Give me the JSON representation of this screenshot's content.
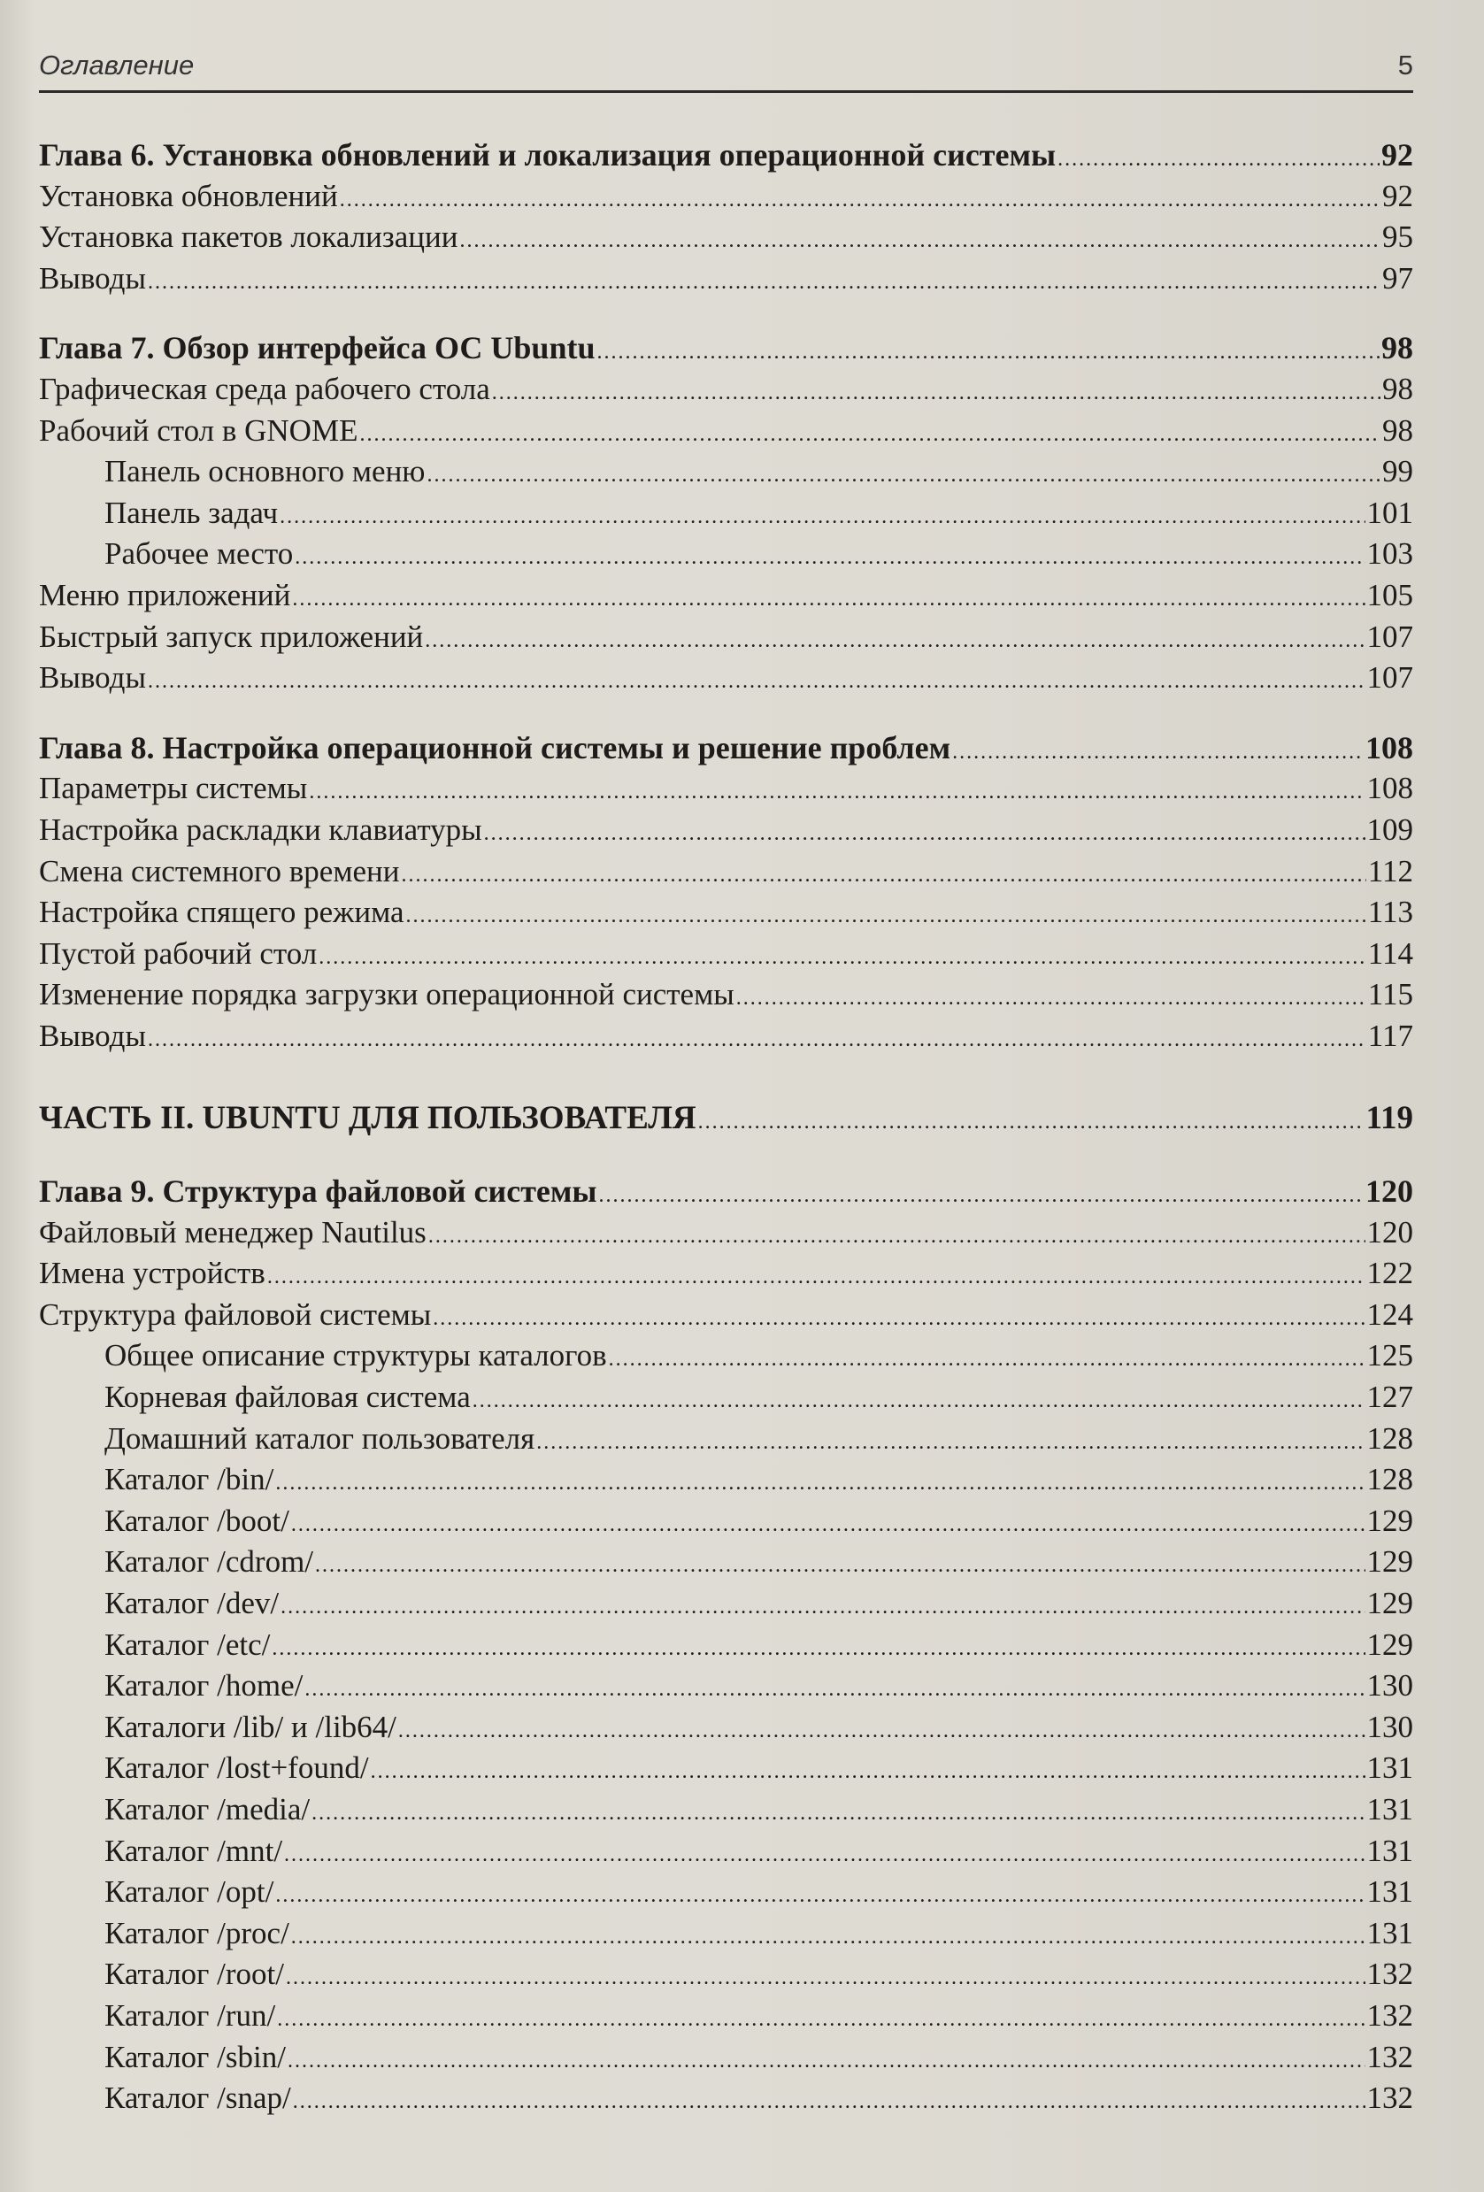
{
  "header": {
    "title": "Оглавление",
    "page_number": "5"
  },
  "toc": [
    {
      "type": "chapter",
      "label": "Глава 6. Установка обновлений и локализация операционной системы",
      "page": "92"
    },
    {
      "type": "section",
      "label": "Установка обновлений",
      "page": "92"
    },
    {
      "type": "section",
      "label": "Установка пакетов локализации",
      "page": "95"
    },
    {
      "type": "section",
      "label": "Выводы",
      "page": "97"
    },
    {
      "type": "chapter",
      "label": "Глава 7. Обзор интерфейса ОС Ubuntu",
      "page": "98"
    },
    {
      "type": "section",
      "label": "Графическая среда рабочего стола",
      "page": "98"
    },
    {
      "type": "section",
      "label": "Рабочий стол в GNOME",
      "page": "98"
    },
    {
      "type": "sub",
      "label": "Панель основного меню",
      "page": "99"
    },
    {
      "type": "sub",
      "label": "Панель задач",
      "page": "101"
    },
    {
      "type": "sub",
      "label": "Рабочее место",
      "page": "103"
    },
    {
      "type": "section",
      "label": "Меню приложений",
      "page": "105"
    },
    {
      "type": "section",
      "label": "Быстрый запуск приложений",
      "page": "107"
    },
    {
      "type": "section",
      "label": "Выводы",
      "page": "107"
    },
    {
      "type": "chapter",
      "label": "Глава 8. Настройка операционной системы и решение проблем",
      "page": "108"
    },
    {
      "type": "section",
      "label": "Параметры системы",
      "page": "108"
    },
    {
      "type": "section",
      "label": "Настройка раскладки клавиатуры",
      "page": "109"
    },
    {
      "type": "section",
      "label": "Смена системного времени",
      "page": "112"
    },
    {
      "type": "section",
      "label": "Настройка спящего режима",
      "page": "113"
    },
    {
      "type": "section",
      "label": "Пустой рабочий стол",
      "page": "114"
    },
    {
      "type": "section",
      "label": "Изменение порядка загрузки операционной системы",
      "page": "115"
    },
    {
      "type": "section",
      "label": "Выводы",
      "page": "117"
    },
    {
      "type": "part",
      "label": "ЧАСТЬ II. UBUNTU ДЛЯ ПОЛЬЗОВАТЕЛЯ",
      "page": "119"
    },
    {
      "type": "chapter",
      "label": "Глава 9. Структура файловой системы",
      "page": "120"
    },
    {
      "type": "section",
      "label": "Файловый менеджер Nautilus",
      "page": "120"
    },
    {
      "type": "section",
      "label": "Имена устройств",
      "page": "122"
    },
    {
      "type": "section",
      "label": "Структура файловой системы",
      "page": "124"
    },
    {
      "type": "sub",
      "label": "Общее описание структуры каталогов",
      "page": "125"
    },
    {
      "type": "sub",
      "label": "Корневая файловая система",
      "page": "127"
    },
    {
      "type": "sub",
      "label": "Домашний каталог пользователя",
      "page": "128"
    },
    {
      "type": "sub",
      "label": "Каталог /bin/",
      "page": "128"
    },
    {
      "type": "sub",
      "label": "Каталог /boot/",
      "page": "129"
    },
    {
      "type": "sub",
      "label": "Каталог /cdrom/",
      "page": "129"
    },
    {
      "type": "sub",
      "label": "Каталог /dev/",
      "page": "129"
    },
    {
      "type": "sub",
      "label": "Каталог /etc/",
      "page": "129"
    },
    {
      "type": "sub",
      "label": "Каталог /home/",
      "page": "130"
    },
    {
      "type": "sub",
      "label": "Каталоги /lib/ и /lib64/",
      "page": "130"
    },
    {
      "type": "sub",
      "label": "Каталог /lost+found/",
      "page": "131"
    },
    {
      "type": "sub",
      "label": "Каталог /media/",
      "page": "131"
    },
    {
      "type": "sub",
      "label": "Каталог /mnt/",
      "page": "131"
    },
    {
      "type": "sub",
      "label": "Каталог /opt/",
      "page": "131"
    },
    {
      "type": "sub",
      "label": "Каталог /proc/",
      "page": "131"
    },
    {
      "type": "sub",
      "label": "Каталог /root/",
      "page": "132"
    },
    {
      "type": "sub",
      "label": "Каталог /run/",
      "page": "132"
    },
    {
      "type": "sub",
      "label": "Каталог /sbin/",
      "page": "132"
    },
    {
      "type": "sub",
      "label": "Каталог /snap/",
      "page": "132"
    }
  ]
}
